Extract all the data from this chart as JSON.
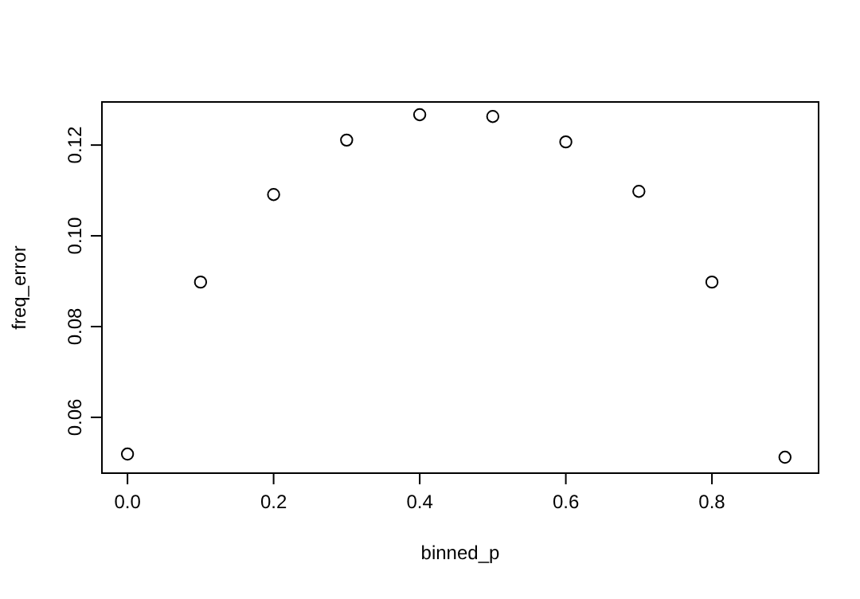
{
  "chart_data": {
    "type": "scatter",
    "xlabel": "binned_p",
    "ylabel": "freq_error",
    "x": [
      0,
      0.1,
      0.2,
      0.3,
      0.4,
      0.5,
      0.6,
      0.7,
      0.8,
      0.9
    ],
    "values": [
      0.0519,
      0.0898,
      0.1091,
      0.1211,
      0.1267,
      0.1263,
      0.1207,
      0.1098,
      0.0898,
      0.0512
    ],
    "color": "#000000",
    "marker": "circle",
    "xlim": [
      -0.035,
      0.946
    ],
    "ylim": [
      0.0477,
      0.1295
    ],
    "xticks": [
      {
        "value": 0,
        "label": "0.0"
      },
      {
        "value": 0.2,
        "label": "0.2"
      },
      {
        "value": 0.4,
        "label": "0.4"
      },
      {
        "value": 0.6,
        "label": "0.6"
      },
      {
        "value": 0.8,
        "label": "0.8"
      }
    ],
    "yticks": [
      0.06,
      0.08,
      {
        "value": 0.1,
        "label": "0.10"
      },
      0.12
    ],
    "grid": false
  }
}
